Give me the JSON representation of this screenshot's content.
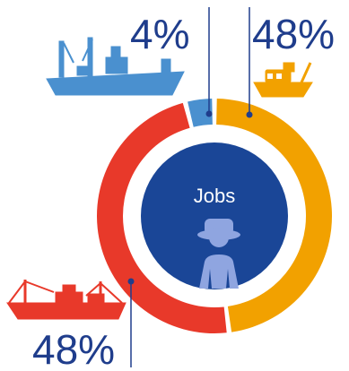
{
  "chart_data": {
    "type": "pie",
    "subtype": "donut",
    "title": "",
    "center_label": "Jobs",
    "center_icon": "worker-icon",
    "start_angle_deg": 0,
    "direction": "clockwise",
    "slices": [
      {
        "label": "48%",
        "value": 48,
        "icon": "small-fishing-boat-icon",
        "color": "#f2a100"
      },
      {
        "label": "48%",
        "value": 48,
        "icon": "trawler-icon",
        "color": "#e8392a"
      },
      {
        "label": "4%",
        "value": 4,
        "icon": "factory-ship-icon",
        "color": "#4a90cf"
      }
    ],
    "center_color": "#1a4697",
    "center_icon_color": "#8fa5e0",
    "label_color": "#1f3d8c",
    "leader_color": "#1f3d8c"
  }
}
